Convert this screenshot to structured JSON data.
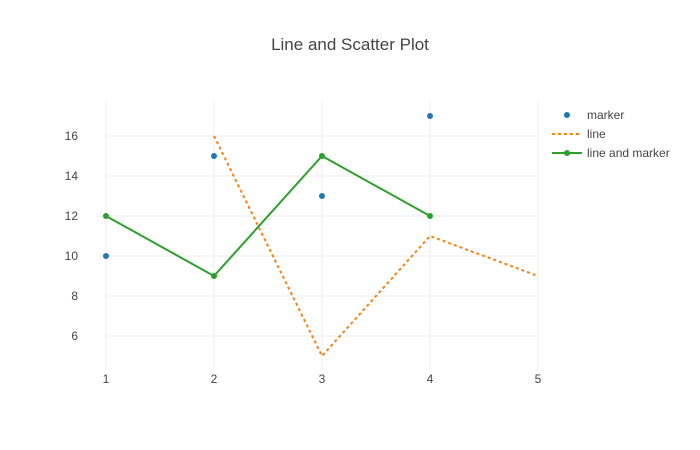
{
  "chart_data": {
    "type": "scatter",
    "title": "Line and Scatter Plot",
    "xlabel": "",
    "ylabel": "",
    "xlim": [
      1,
      5
    ],
    "ylim": [
      4.5,
      18
    ],
    "x_ticks": [
      1,
      2,
      3,
      4,
      5
    ],
    "y_ticks": [
      6,
      8,
      10,
      12,
      14,
      16
    ],
    "grid": true,
    "legend_position": "top-right",
    "series": [
      {
        "name": "marker",
        "mode": "markers",
        "color": "#1f77b4",
        "dash": "solid",
        "x": [
          1,
          2,
          3,
          4
        ],
        "y": [
          10,
          15,
          13,
          17
        ]
      },
      {
        "name": "line",
        "mode": "lines",
        "color": "#ff7f0e",
        "dash": "dot",
        "x": [
          2,
          3,
          4,
          5
        ],
        "y": [
          16,
          5,
          11,
          9
        ]
      },
      {
        "name": "line and marker",
        "mode": "lines+markers",
        "color": "#2ca02c",
        "dash": "solid",
        "x": [
          1,
          2,
          3,
          4
        ],
        "y": [
          12,
          9,
          15,
          12
        ]
      }
    ]
  }
}
